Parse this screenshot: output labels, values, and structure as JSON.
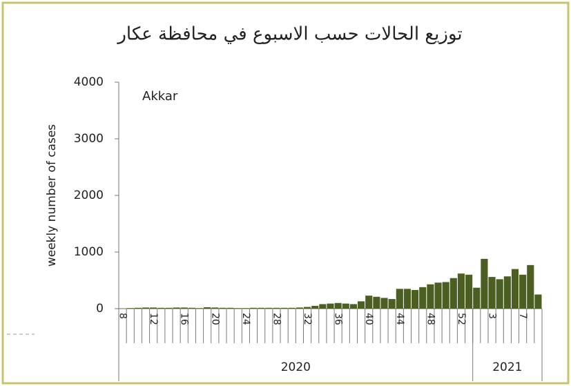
{
  "chart_data": {
    "type": "bar",
    "title": "توزيع الحالات حسب الاسبوع في محافظة عكار",
    "annotation": "Akkar",
    "y_label": "weekly number of cases",
    "color": "#4b5f22",
    "ylim": [
      0,
      4000
    ],
    "yticks": [
      0,
      1000,
      2000,
      3000,
      4000
    ],
    "grid": false,
    "groups": [
      {
        "label": "2020",
        "categories": [
          "8",
          null,
          null,
          null,
          "12",
          null,
          null,
          null,
          "16",
          null,
          null,
          null,
          "20",
          null,
          null,
          null,
          "24",
          null,
          null,
          null,
          "28",
          null,
          null,
          null,
          "32",
          null,
          null,
          null,
          "36",
          null,
          null,
          null,
          "40",
          null,
          null,
          null,
          "44",
          null,
          null,
          null,
          "48",
          null,
          null,
          null,
          "52",
          null
        ],
        "values": [
          5,
          10,
          15,
          20,
          20,
          15,
          15,
          20,
          20,
          15,
          10,
          25,
          20,
          15,
          15,
          10,
          10,
          15,
          15,
          15,
          15,
          15,
          15,
          20,
          30,
          50,
          80,
          90,
          100,
          90,
          80,
          130,
          230,
          210,
          190,
          170,
          350,
          350,
          330,
          380,
          430,
          460,
          470,
          540,
          620,
          600
        ]
      },
      {
        "label": "2021",
        "categories": [
          null,
          null,
          "3",
          null,
          null,
          null,
          "7",
          null,
          null
        ],
        "values": [
          370,
          880,
          560,
          520,
          570,
          700,
          600,
          770,
          250
        ]
      }
    ]
  }
}
